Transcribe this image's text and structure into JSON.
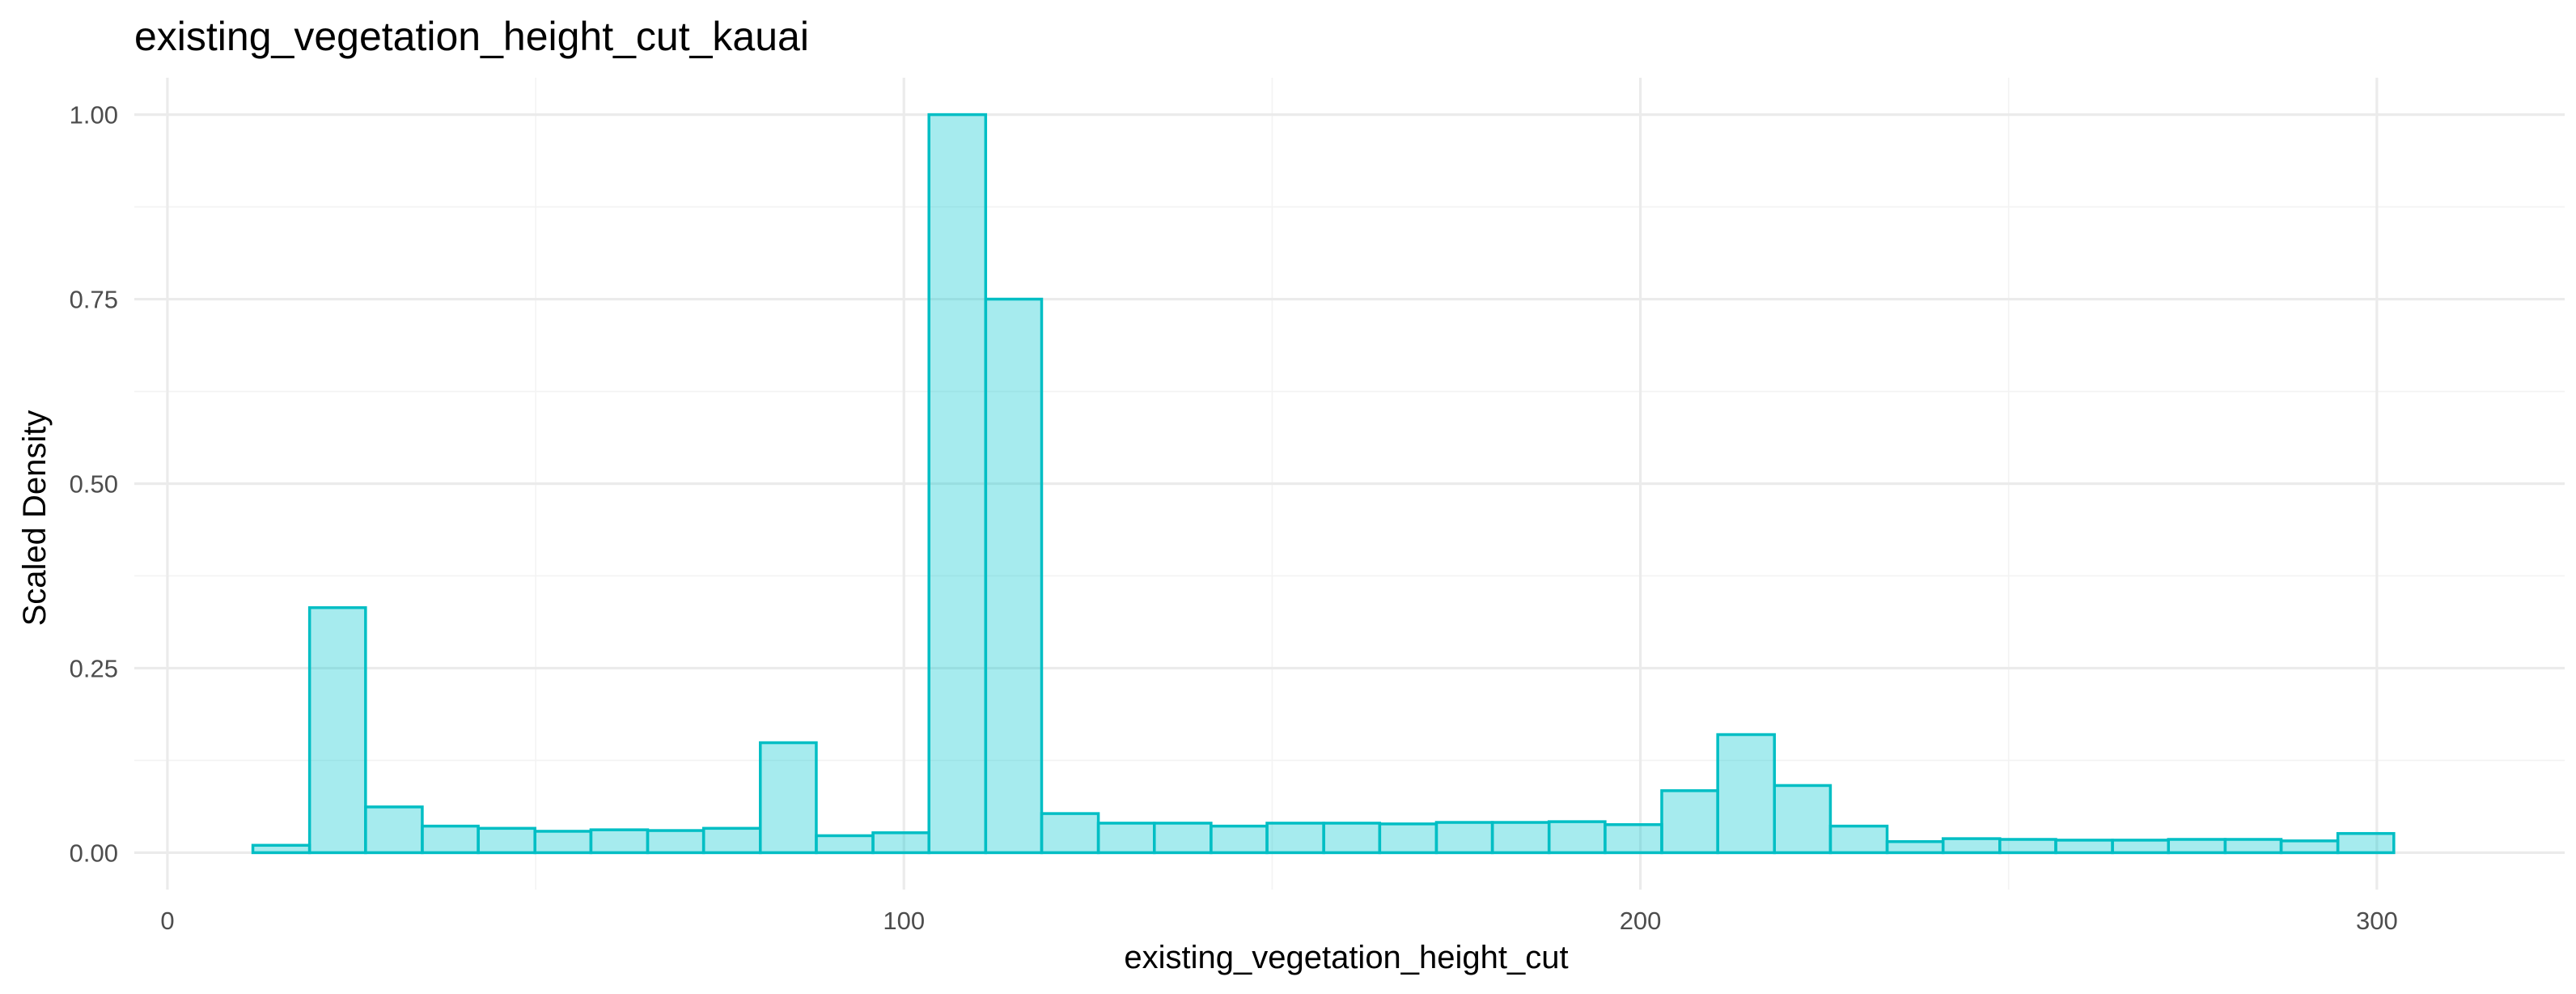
{
  "chart_data": {
    "type": "bar",
    "title": "existing_vegetation_height_cut_kauai",
    "xlabel": "existing_vegetation_height_cut",
    "ylabel": "Scaled Density",
    "xlim": [
      -4.5,
      325.5
    ],
    "ylim": [
      -0.05,
      1.05
    ],
    "x_ticks": [
      0,
      100,
      200,
      300
    ],
    "y_ticks": [
      0.0,
      0.25,
      0.5,
      0.75,
      1.0
    ],
    "x_tick_labels": [
      "0",
      "100",
      "200",
      "300"
    ],
    "y_tick_labels": [
      "0.00",
      "0.25",
      "0.50",
      "0.75",
      "1.00"
    ],
    "grid": true,
    "legend": "none",
    "bin_width": 7.65,
    "bins": [
      {
        "x0": 11.6,
        "x1": 19.3,
        "value": 0.01
      },
      {
        "x0": 19.3,
        "x1": 26.9,
        "value": 0.332
      },
      {
        "x0": 26.9,
        "x1": 34.6,
        "value": 0.062
      },
      {
        "x0": 34.6,
        "x1": 42.2,
        "value": 0.036
      },
      {
        "x0": 42.2,
        "x1": 49.9,
        "value": 0.033
      },
      {
        "x0": 49.9,
        "x1": 57.5,
        "value": 0.029
      },
      {
        "x0": 57.5,
        "x1": 65.2,
        "value": 0.031
      },
      {
        "x0": 65.2,
        "x1": 72.8,
        "value": 0.03
      },
      {
        "x0": 72.8,
        "x1": 80.5,
        "value": 0.033
      },
      {
        "x0": 80.5,
        "x1": 88.1,
        "value": 0.149
      },
      {
        "x0": 88.1,
        "x1": 95.8,
        "value": 0.023
      },
      {
        "x0": 95.8,
        "x1": 103.4,
        "value": 0.027
      },
      {
        "x0": 103.4,
        "x1": 111.1,
        "value": 1.0
      },
      {
        "x0": 111.1,
        "x1": 118.7,
        "value": 0.75
      },
      {
        "x0": 118.7,
        "x1": 126.4,
        "value": 0.053
      },
      {
        "x0": 126.4,
        "x1": 134.0,
        "value": 0.04
      },
      {
        "x0": 134.0,
        "x1": 141.7,
        "value": 0.04
      },
      {
        "x0": 141.7,
        "x1": 149.3,
        "value": 0.036
      },
      {
        "x0": 149.3,
        "x1": 157.0,
        "value": 0.04
      },
      {
        "x0": 157.0,
        "x1": 164.6,
        "value": 0.04
      },
      {
        "x0": 164.6,
        "x1": 172.3,
        "value": 0.039
      },
      {
        "x0": 172.3,
        "x1": 179.9,
        "value": 0.041
      },
      {
        "x0": 179.9,
        "x1": 187.6,
        "value": 0.041
      },
      {
        "x0": 187.6,
        "x1": 195.2,
        "value": 0.042
      },
      {
        "x0": 195.2,
        "x1": 202.9,
        "value": 0.038
      },
      {
        "x0": 202.9,
        "x1": 210.5,
        "value": 0.084
      },
      {
        "x0": 210.5,
        "x1": 218.2,
        "value": 0.16
      },
      {
        "x0": 218.2,
        "x1": 225.8,
        "value": 0.091
      },
      {
        "x0": 225.8,
        "x1": 233.5,
        "value": 0.036
      },
      {
        "x0": 233.5,
        "x1": 241.1,
        "value": 0.015
      },
      {
        "x0": 241.1,
        "x1": 248.8,
        "value": 0.019
      },
      {
        "x0": 248.8,
        "x1": 256.4,
        "value": 0.018
      },
      {
        "x0": 256.4,
        "x1": 264.1,
        "value": 0.017
      },
      {
        "x0": 264.1,
        "x1": 271.7,
        "value": 0.017
      },
      {
        "x0": 271.7,
        "x1": 279.4,
        "value": 0.018
      },
      {
        "x0": 279.4,
        "x1": 287.0,
        "value": 0.018
      },
      {
        "x0": 287.0,
        "x1": 294.7,
        "value": 0.016
      },
      {
        "x0": 294.7,
        "x1": 302.3,
        "value": 0.026
      }
    ],
    "colors": {
      "fill": "#00c5cd",
      "stroke": "#00bec4",
      "grid": "#ebebeb"
    }
  }
}
